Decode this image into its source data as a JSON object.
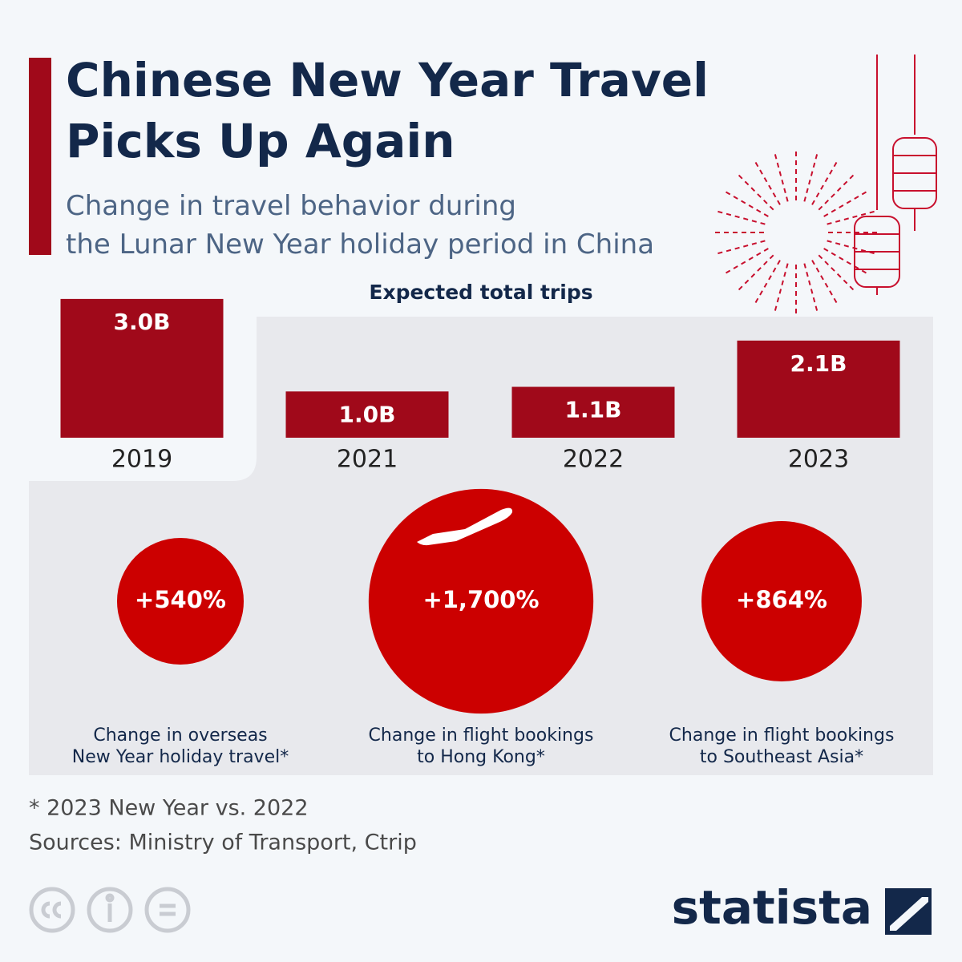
{
  "header": {
    "title": "Chinese New Year Travel\nPicks Up Again",
    "subtitle": "Change in travel behavior during\nthe Lunar New Year holiday period in China"
  },
  "chart_data": [
    {
      "type": "bar",
      "title": "Expected total trips",
      "categories": [
        "2019",
        "2021",
        "2022",
        "2023"
      ],
      "values": [
        3.0,
        1.0,
        1.1,
        2.1
      ],
      "value_labels": [
        "3.0B",
        "1.0B",
        "1.1B",
        "2.1B"
      ],
      "color": "#a0091a"
    },
    {
      "type": "bubble",
      "labels": [
        "Change in overseas\nNew Year holiday travel*",
        "Change in flight bookings\nto Hong Kong*",
        "Change in flight bookings\nto Southeast Asia*"
      ],
      "values": [
        540,
        1700,
        864
      ],
      "value_labels": [
        "+540%",
        "+1,700%",
        "+864%"
      ],
      "color": "#cc0000"
    }
  ],
  "footer": {
    "note": "* 2023 New Year vs. 2022",
    "source": "Sources: Ministry of Transport, Ctrip",
    "brand": "statista"
  }
}
